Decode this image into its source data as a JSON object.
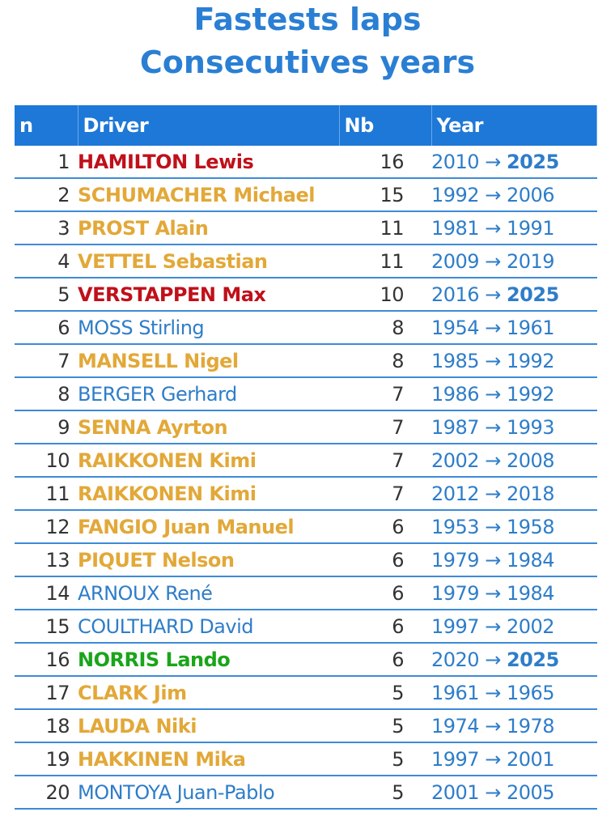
{
  "header": {
    "title": "Fastests laps",
    "subtitle": "Consecutives years"
  },
  "table": {
    "columns": [
      "n",
      "Driver",
      "Nb",
      "Year"
    ],
    "arrow": "→",
    "rows": [
      {
        "n": 1,
        "driver": "HAMILTON Lewis",
        "color": "#c0101a",
        "nb": 16,
        "start": 2010,
        "end": 2025,
        "end_bold": true
      },
      {
        "n": 2,
        "driver": "SCHUMACHER Michael",
        "color": "#e2a838",
        "nb": 15,
        "start": 1992,
        "end": 2006,
        "end_bold": false
      },
      {
        "n": 3,
        "driver": "PROST Alain",
        "color": "#e2a838",
        "nb": 11,
        "start": 1981,
        "end": 1991,
        "end_bold": false
      },
      {
        "n": 4,
        "driver": "VETTEL Sebastian",
        "color": "#e2a838",
        "nb": 11,
        "start": 2009,
        "end": 2019,
        "end_bold": false
      },
      {
        "n": 5,
        "driver": "VERSTAPPEN Max",
        "color": "#c0101a",
        "nb": 10,
        "start": 2016,
        "end": 2025,
        "end_bold": true
      },
      {
        "n": 6,
        "driver": "MOSS Stirling",
        "color": "#2e7dc9",
        "nb": 8,
        "start": 1954,
        "end": 1961,
        "end_bold": false
      },
      {
        "n": 7,
        "driver": "MANSELL Nigel",
        "color": "#e2a838",
        "nb": 8,
        "start": 1985,
        "end": 1992,
        "end_bold": false
      },
      {
        "n": 8,
        "driver": "BERGER Gerhard",
        "color": "#2e7dc9",
        "nb": 7,
        "start": 1986,
        "end": 1992,
        "end_bold": false
      },
      {
        "n": 9,
        "driver": "SENNA Ayrton",
        "color": "#e2a838",
        "nb": 7,
        "start": 1987,
        "end": 1993,
        "end_bold": false
      },
      {
        "n": 10,
        "driver": "RAIKKONEN Kimi",
        "color": "#e2a838",
        "nb": 7,
        "start": 2002,
        "end": 2008,
        "end_bold": false
      },
      {
        "n": 11,
        "driver": "RAIKKONEN Kimi",
        "color": "#e2a838",
        "nb": 7,
        "start": 2012,
        "end": 2018,
        "end_bold": false
      },
      {
        "n": 12,
        "driver": "FANGIO Juan Manuel",
        "color": "#e2a838",
        "nb": 6,
        "start": 1953,
        "end": 1958,
        "end_bold": false
      },
      {
        "n": 13,
        "driver": "PIQUET Nelson",
        "color": "#e2a838",
        "nb": 6,
        "start": 1979,
        "end": 1984,
        "end_bold": false
      },
      {
        "n": 14,
        "driver": "ARNOUX René",
        "color": "#2e7dc9",
        "nb": 6,
        "start": 1979,
        "end": 1984,
        "end_bold": false
      },
      {
        "n": 15,
        "driver": "COULTHARD David",
        "color": "#2e7dc9",
        "nb": 6,
        "start": 1997,
        "end": 2002,
        "end_bold": false
      },
      {
        "n": 16,
        "driver": "NORRIS Lando",
        "color": "#1aa51a",
        "nb": 6,
        "start": 2020,
        "end": 2025,
        "end_bold": true
      },
      {
        "n": 17,
        "driver": "CLARK Jim",
        "color": "#e2a838",
        "nb": 5,
        "start": 1961,
        "end": 1965,
        "end_bold": false
      },
      {
        "n": 18,
        "driver": "LAUDA Niki",
        "color": "#e2a838",
        "nb": 5,
        "start": 1974,
        "end": 1978,
        "end_bold": false
      },
      {
        "n": 19,
        "driver": "HAKKINEN Mika",
        "color": "#e2a838",
        "nb": 5,
        "start": 1997,
        "end": 2001,
        "end_bold": false
      },
      {
        "n": 20,
        "driver": "MONTOYA Juan-Pablo",
        "color": "#2e7dc9",
        "nb": 5,
        "start": 2001,
        "end": 2005,
        "end_bold": false
      }
    ]
  }
}
